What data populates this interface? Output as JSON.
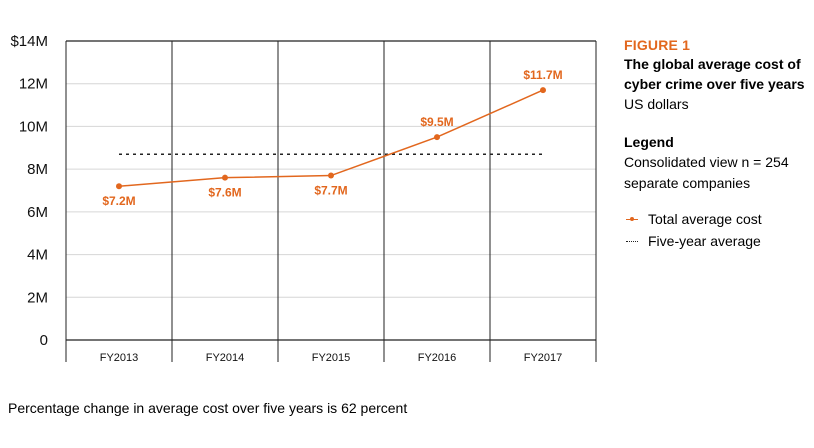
{
  "chart_data": {
    "type": "line",
    "categories": [
      "FY2013",
      "FY2014",
      "FY2015",
      "FY2016",
      "FY2017"
    ],
    "series": [
      {
        "name": "Total average cost",
        "values": [
          7.2,
          7.6,
          7.7,
          9.5,
          11.7
        ],
        "labels": [
          "$7.2M",
          "$7.6M",
          "$7.7M",
          "$9.5M",
          "$11.7M"
        ],
        "color": "#e2671e"
      }
    ],
    "reference_line": {
      "name": "Five-year average",
      "value": 8.7,
      "style": "dotted"
    },
    "yticks": [
      {
        "value": 0,
        "label": "0"
      },
      {
        "value": 2,
        "label": "2M"
      },
      {
        "value": 4,
        "label": "4M"
      },
      {
        "value": 6,
        "label": "6M"
      },
      {
        "value": 8,
        "label": "8M"
      },
      {
        "value": 10,
        "label": "10M"
      },
      {
        "value": 12,
        "label": "12M"
      },
      {
        "value": 14,
        "label": "$14M"
      }
    ],
    "ylim": [
      0,
      14
    ],
    "grid": true,
    "legend_position": "right"
  },
  "figure": {
    "label": "FIGURE 1",
    "title": "The global average cost of cyber crime over five years",
    "unit": "US dollars"
  },
  "legend": {
    "title": "Legend",
    "description": "Consolidated view n = 254 separate companies",
    "items": [
      {
        "label": "Total average cost"
      },
      {
        "label": "Five-year average"
      }
    ]
  },
  "footnote": "Percentage change in average cost over five years is 62 percent"
}
